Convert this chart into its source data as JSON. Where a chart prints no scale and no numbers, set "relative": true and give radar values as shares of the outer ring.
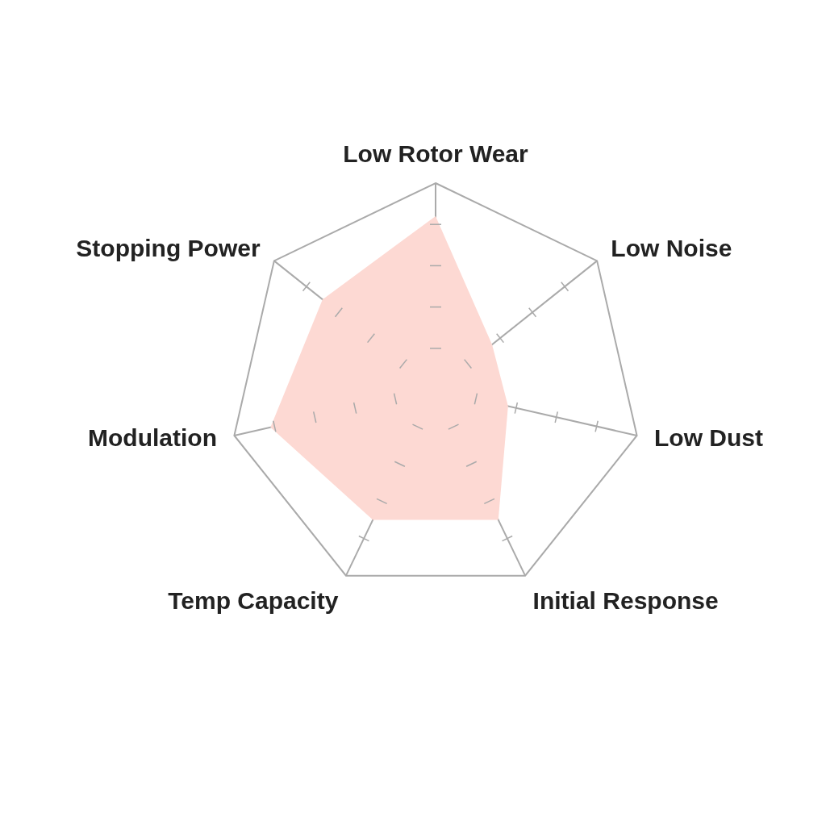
{
  "chart_data": {
    "type": "radar",
    "relative": true,
    "categories": [
      "Low Rotor Wear",
      "Low Noise",
      "Low Dust",
      "Initial Response",
      "Temp Capacity",
      "Modulation",
      "Stopping Power"
    ],
    "series": [
      {
        "color": "#fdd9d3",
        "values": [
          0.84,
          0.35,
          0.36,
          0.7,
          0.7,
          0.82,
          0.7
        ]
      }
    ]
  }
}
